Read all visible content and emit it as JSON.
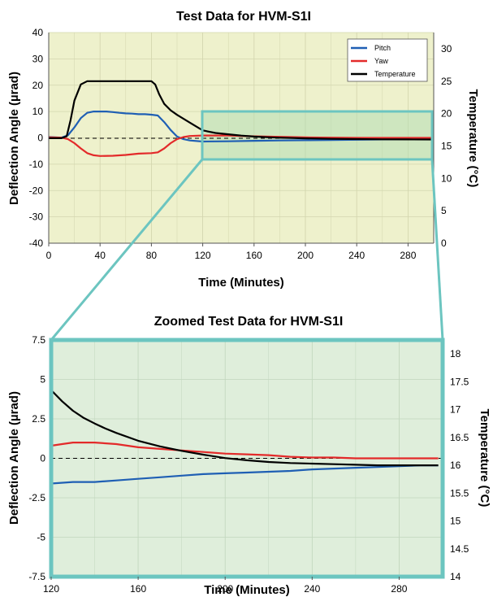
{
  "chart_data": [
    {
      "type": "line",
      "title": "Test Data for HVM-S1I",
      "xlabel": "Time (Minutes)",
      "ylabel": "Deflection Angle (µrad)",
      "y2label": "Temperature (°C)",
      "xlim": [
        0,
        300
      ],
      "ylim": [
        -40,
        40
      ],
      "y2lim": [
        0,
        32.5
      ],
      "x_ticks": [
        0,
        40,
        80,
        120,
        160,
        200,
        240,
        280
      ],
      "y_ticks": [
        -40,
        -30,
        -20,
        -10,
        0,
        10,
        20,
        30,
        40
      ],
      "y2_ticks": [
        0,
        5,
        10,
        15,
        20,
        25,
        30
      ],
      "grid": true,
      "legend_position": "top-right",
      "zoom_region": {
        "x": [
          120,
          300
        ],
        "y": [
          -7.5,
          7.5
        ]
      },
      "series": [
        {
          "name": "Pitch",
          "axis": "left",
          "color": "#1f5fb4",
          "points": [
            [
              0,
              0.3
            ],
            [
              5,
              0.2
            ],
            [
              10,
              0.1
            ],
            [
              15,
              1
            ],
            [
              20,
              4
            ],
            [
              25,
              7.5
            ],
            [
              30,
              9.5
            ],
            [
              35,
              10
            ],
            [
              40,
              10
            ],
            [
              45,
              10
            ],
            [
              50,
              9.8
            ],
            [
              55,
              9.5
            ],
            [
              60,
              9.3
            ],
            [
              65,
              9.2
            ],
            [
              70,
              9
            ],
            [
              75,
              9
            ],
            [
              80,
              8.8
            ],
            [
              85,
              8.5
            ],
            [
              90,
              6
            ],
            [
              95,
              3
            ],
            [
              100,
              0.5
            ],
            [
              105,
              -0.5
            ],
            [
              110,
              -1
            ],
            [
              120,
              -1.4
            ],
            [
              140,
              -1.3
            ],
            [
              160,
              -1.1
            ],
            [
              180,
              -1
            ],
            [
              200,
              -0.9
            ],
            [
              220,
              -0.8
            ],
            [
              240,
              -0.7
            ],
            [
              260,
              -0.6
            ],
            [
              280,
              -0.5
            ],
            [
              300,
              -0.5
            ]
          ]
        },
        {
          "name": "Yaw",
          "axis": "left",
          "color": "#e32a2a",
          "points": [
            [
              0,
              0.2
            ],
            [
              10,
              0.1
            ],
            [
              15,
              -0.5
            ],
            [
              20,
              -2
            ],
            [
              25,
              -4
            ],
            [
              30,
              -5.8
            ],
            [
              35,
              -6.6
            ],
            [
              40,
              -6.9
            ],
            [
              50,
              -6.8
            ],
            [
              60,
              -6.5
            ],
            [
              70,
              -6
            ],
            [
              80,
              -5.8
            ],
            [
              85,
              -5.5
            ],
            [
              90,
              -4
            ],
            [
              95,
              -2
            ],
            [
              100,
              -0.5
            ],
            [
              105,
              0.3
            ],
            [
              110,
              0.7
            ],
            [
              120,
              0.9
            ],
            [
              140,
              0.9
            ],
            [
              160,
              0.6
            ],
            [
              180,
              0.4
            ],
            [
              200,
              0.2
            ],
            [
              220,
              0.1
            ],
            [
              240,
              0
            ],
            [
              260,
              0
            ],
            [
              280,
              0
            ],
            [
              300,
              0
            ]
          ]
        },
        {
          "name": "Temperature",
          "axis": "right",
          "color": "#000000",
          "points": [
            [
              0,
              16.2
            ],
            [
              10,
              16.2
            ],
            [
              14,
              16.5
            ],
            [
              17,
              19
            ],
            [
              20,
              22
            ],
            [
              25,
              24.5
            ],
            [
              30,
              25
            ],
            [
              40,
              25
            ],
            [
              50,
              25
            ],
            [
              60,
              25
            ],
            [
              70,
              25
            ],
            [
              80,
              25
            ],
            [
              83,
              24.5
            ],
            [
              86,
              23
            ],
            [
              90,
              21.5
            ],
            [
              95,
              20.5
            ],
            [
              100,
              19.8
            ],
            [
              110,
              18.6
            ],
            [
              120,
              17.4
            ],
            [
              130,
              17
            ],
            [
              140,
              16.8
            ],
            [
              150,
              16.6
            ],
            [
              160,
              16.45
            ],
            [
              170,
              16.35
            ],
            [
              180,
              16.28
            ],
            [
              190,
              16.22
            ],
            [
              200,
              16.17
            ],
            [
              220,
              16.1
            ],
            [
              240,
              16.06
            ],
            [
              260,
              16.03
            ],
            [
              280,
              16.01
            ],
            [
              300,
              16
            ]
          ]
        }
      ]
    },
    {
      "type": "line",
      "title": "Zoomed Test Data for HVM-S1I",
      "xlabel": "Time (Minutes)",
      "ylabel": "Deflection Angle (µrad)",
      "y2label": "Temperature (°C)",
      "xlim": [
        120,
        300
      ],
      "ylim": [
        -7.5,
        7.5
      ],
      "y2lim": [
        14,
        18.25
      ],
      "x_ticks": [
        120,
        160,
        200,
        240,
        280
      ],
      "y_ticks": [
        -7.5,
        -5,
        -2.5,
        0,
        2.5,
        5,
        7.5
      ],
      "y_tick_labels": [
        "-7.5",
        "-5",
        "-2.5",
        "0",
        "2.5",
        "5",
        "7.5"
      ],
      "y2_ticks": [
        14,
        14.5,
        15,
        15.5,
        16,
        16.5,
        17,
        17.5,
        18
      ],
      "grid": true,
      "series": [
        {
          "name": "Pitch",
          "axis": "left",
          "color": "#1f5fb4",
          "points": [
            [
              120,
              -1.6
            ],
            [
              130,
              -1.5
            ],
            [
              140,
              -1.5
            ],
            [
              150,
              -1.4
            ],
            [
              160,
              -1.3
            ],
            [
              170,
              -1.2
            ],
            [
              180,
              -1.1
            ],
            [
              190,
              -1.0
            ],
            [
              200,
              -0.95
            ],
            [
              210,
              -0.9
            ],
            [
              220,
              -0.85
            ],
            [
              230,
              -0.8
            ],
            [
              240,
              -0.7
            ],
            [
              250,
              -0.65
            ],
            [
              260,
              -0.6
            ],
            [
              270,
              -0.55
            ],
            [
              280,
              -0.5
            ],
            [
              290,
              -0.45
            ],
            [
              298,
              -0.45
            ]
          ]
        },
        {
          "name": "Yaw",
          "axis": "left",
          "color": "#e32a2a",
          "points": [
            [
              120,
              0.8
            ],
            [
              125,
              0.9
            ],
            [
              130,
              1.0
            ],
            [
              140,
              1.0
            ],
            [
              150,
              0.9
            ],
            [
              160,
              0.7
            ],
            [
              170,
              0.6
            ],
            [
              180,
              0.5
            ],
            [
              190,
              0.4
            ],
            [
              200,
              0.3
            ],
            [
              210,
              0.25
            ],
            [
              220,
              0.2
            ],
            [
              230,
              0.1
            ],
            [
              240,
              0.05
            ],
            [
              250,
              0.05
            ],
            [
              260,
              0.0
            ],
            [
              270,
              0.0
            ],
            [
              280,
              0.0
            ],
            [
              290,
              0.0
            ],
            [
              298,
              0.0
            ]
          ]
        },
        {
          "name": "Temperature",
          "axis": "right",
          "color": "#000000",
          "points": [
            [
              120,
              17.35
            ],
            [
              125,
              17.15
            ],
            [
              130,
              16.98
            ],
            [
              135,
              16.85
            ],
            [
              140,
              16.75
            ],
            [
              145,
              16.66
            ],
            [
              150,
              16.58
            ],
            [
              160,
              16.44
            ],
            [
              170,
              16.34
            ],
            [
              180,
              16.26
            ],
            [
              190,
              16.19
            ],
            [
              200,
              16.13
            ],
            [
              210,
              16.09
            ],
            [
              220,
              16.06
            ],
            [
              230,
              16.04
            ],
            [
              240,
              16.03
            ],
            [
              250,
              16.02
            ],
            [
              260,
              16.01
            ],
            [
              270,
              16.0
            ],
            [
              280,
              16.0
            ],
            [
              290,
              16.0
            ],
            [
              298,
              16.0
            ]
          ]
        }
      ]
    }
  ]
}
